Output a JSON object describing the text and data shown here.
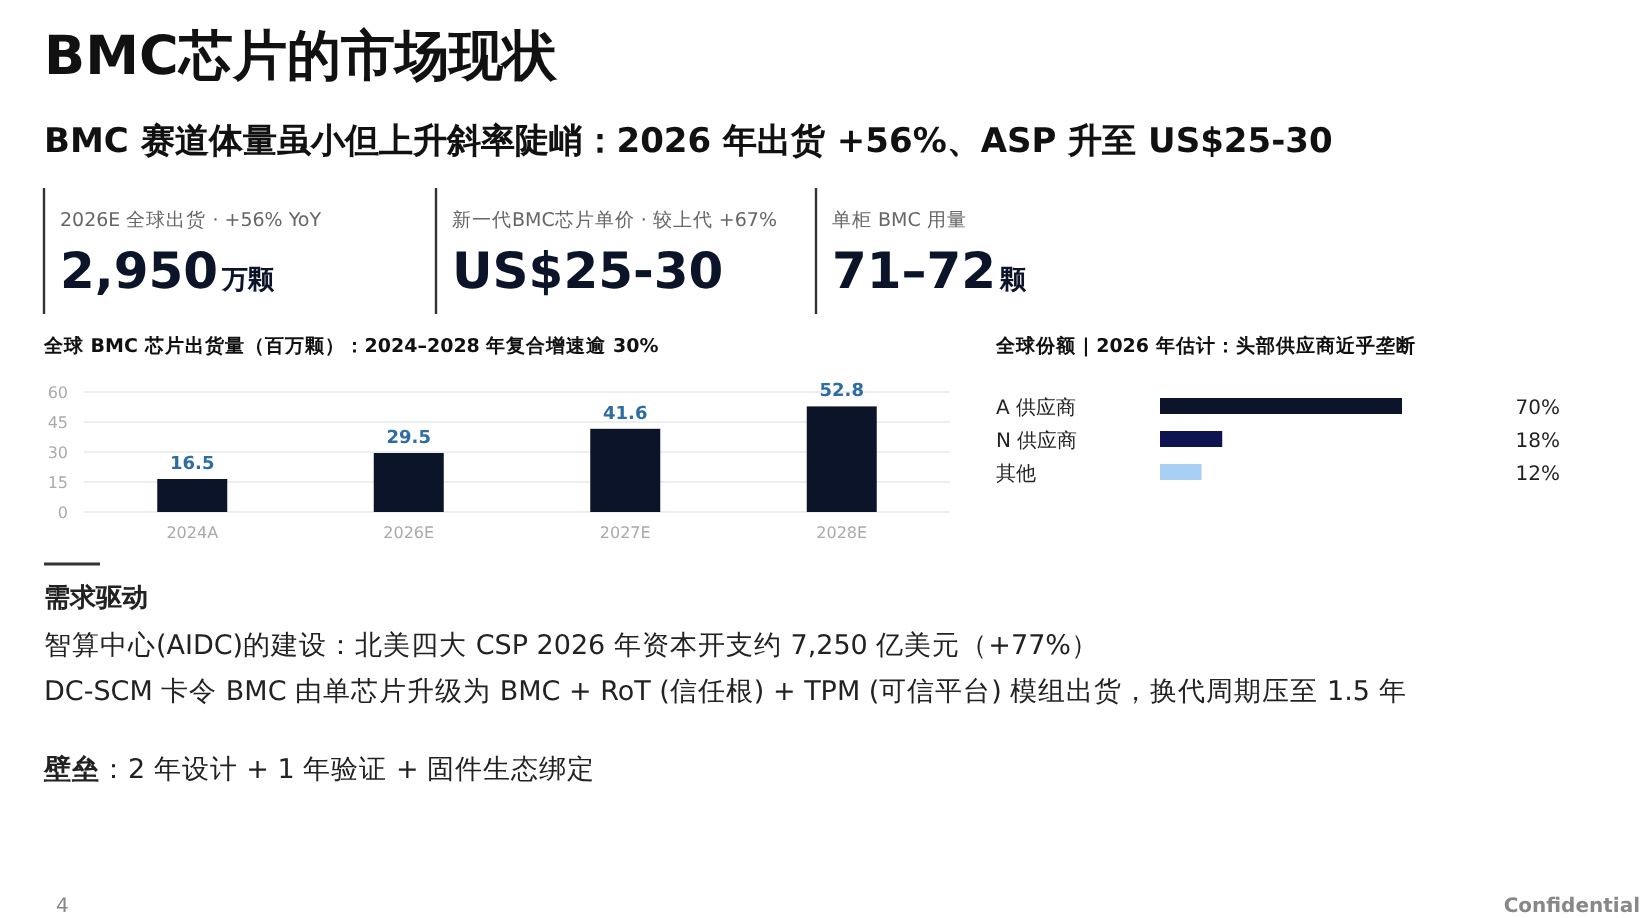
{
  "chart_data": [
    {
      "type": "other",
      "title": "BMC芯片的市场现状",
      "subtitle": "BMC 赛道体量虽小但上升斜率陡峭：2026 年出货 +56%、ASP 升至 US$25-30",
      "annotations": [
        "2026E 全球出货 · +56% YoY",
        "2,950",
        "万颗",
        "新一代BMC芯片单价 · 较上代 +67%",
        "US$25-30",
        "单柜 BMC 用量",
        "71–72",
        "颗"
      ]
    },
    {
      "type": "bar",
      "title": "全球 BMC 芯片出货量（百万颗）：2024–2028 年复合增速逾 30%",
      "categories": [
        "2024A",
        "2026E",
        "2027E",
        "2028E"
      ],
      "values": [
        16.5,
        29.5,
        41.6,
        52.8
      ],
      "color": "#0b1428",
      "ylim": [
        0,
        60
      ],
      "yticks": [
        0,
        15,
        30,
        45,
        60
      ],
      "grid": "y",
      "data_labels": true
    },
    {
      "type": "bar",
      "orientation": "horizontal",
      "title": "全球份额 | 2026 年估计：头部供应商近乎垄断",
      "categories": [
        "A 供应商",
        "N 供应商",
        "其他"
      ],
      "values": [
        70,
        18,
        12
      ],
      "colors": [
        "#0b1428",
        "#0f1450",
        "#a8d0f5"
      ],
      "value_labels": [
        "70%",
        "18%",
        "12%"
      ]
    },
    {
      "type": "other",
      "annotations": [
        "**需求驱动**",
        "智算中心(AIDC)的建设：北美四大 CSP 2026 年资本开支约 7,250 亿美元（+77%）",
        "DC-SCM 卡令 BMC 由单芯片升级为 BMC + RoT (信任根) + TPM (可信平台) 模组出货，换代周期压至 1.5 年",
        "**壁垒**：2 年设计 + 1 年验证 + 固件生态绑定",
        "4",
        "Confidential"
      ]
    }
  ]
}
